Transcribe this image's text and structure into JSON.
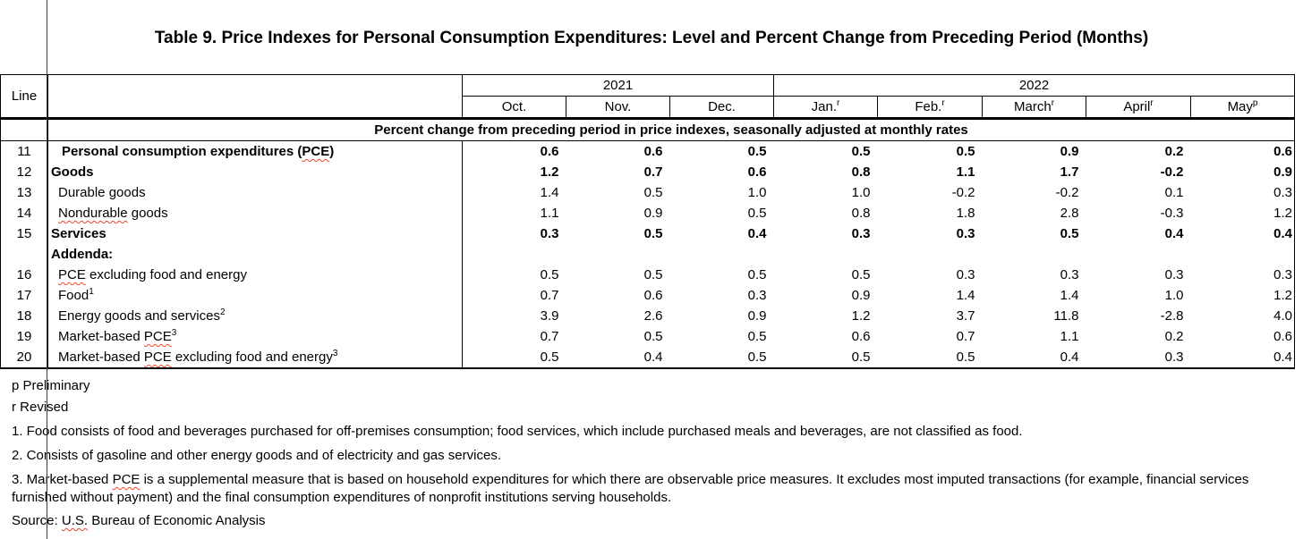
{
  "title": "Table 9. Price Indexes for Personal Consumption Expenditures: Level and Percent Change from Preceding Period (Months)",
  "colors": {
    "background": "#ffffff",
    "text": "#000000",
    "border": "#000000",
    "spellcheck_squiggle": "#f0442c"
  },
  "table": {
    "line_header": "Line",
    "year_groups": [
      {
        "label": "2021",
        "span": 3
      },
      {
        "label": "2022",
        "span": 5
      }
    ],
    "months": [
      {
        "label": "Oct.",
        "sup": ""
      },
      {
        "label": "Nov.",
        "sup": ""
      },
      {
        "label": "Dec.",
        "sup": ""
      },
      {
        "label": "Jan.",
        "sup": "r"
      },
      {
        "label": "Feb.",
        "sup": "r"
      },
      {
        "label": "March",
        "sup": "r"
      },
      {
        "label": "April",
        "sup": "r"
      },
      {
        "label": "May",
        "sup": "p"
      }
    ],
    "banner": "Percent change from preceding period in price indexes, seasonally adjusted at monthly rates",
    "rows": [
      {
        "line": "11",
        "label": "Personal consumption expenditures (PCE)",
        "sup": "",
        "indent": 2,
        "bold": true,
        "squiggle": [
          "PCE"
        ],
        "values": [
          "0.6",
          "0.6",
          "0.5",
          "0.5",
          "0.5",
          "0.9",
          "0.2",
          "0.6"
        ]
      },
      {
        "line": "12",
        "label": "Goods",
        "sup": "",
        "indent": 0,
        "bold": true,
        "squiggle": [],
        "values": [
          "1.2",
          "0.7",
          "0.6",
          "0.8",
          "1.1",
          "1.7",
          "-0.2",
          "0.9"
        ]
      },
      {
        "line": "13",
        "label": "Durable goods",
        "sup": "",
        "indent": 1,
        "bold": false,
        "squiggle": [],
        "values": [
          "1.4",
          "0.5",
          "1.0",
          "1.0",
          "-0.2",
          "-0.2",
          "0.1",
          "0.3"
        ]
      },
      {
        "line": "14",
        "label": "Nondurable goods",
        "sup": "",
        "indent": 1,
        "bold": false,
        "squiggle": [
          "Nondurable"
        ],
        "values": [
          "1.1",
          "0.9",
          "0.5",
          "0.8",
          "1.8",
          "2.8",
          "-0.3",
          "1.2"
        ]
      },
      {
        "line": "15",
        "label": "Services",
        "sup": "",
        "indent": 0,
        "bold": true,
        "squiggle": [],
        "values": [
          "0.3",
          "0.5",
          "0.4",
          "0.3",
          "0.3",
          "0.5",
          "0.4",
          "0.4"
        ]
      },
      {
        "line": "",
        "label": "Addenda:",
        "sup": "",
        "indent": 0,
        "bold": true,
        "squiggle": [],
        "values": [
          "",
          "",
          "",
          "",
          "",
          "",
          "",
          ""
        ]
      },
      {
        "line": "16",
        "label": "PCE excluding food and energy",
        "sup": "",
        "indent": 1,
        "bold": false,
        "squiggle": [
          "PCE"
        ],
        "values": [
          "0.5",
          "0.5",
          "0.5",
          "0.5",
          "0.3",
          "0.3",
          "0.3",
          "0.3"
        ]
      },
      {
        "line": "17",
        "label": "Food",
        "sup": "1",
        "indent": 1,
        "bold": false,
        "squiggle": [],
        "values": [
          "0.7",
          "0.6",
          "0.3",
          "0.9",
          "1.4",
          "1.4",
          "1.0",
          "1.2"
        ]
      },
      {
        "line": "18",
        "label": "Energy goods and services",
        "sup": "2",
        "indent": 1,
        "bold": false,
        "squiggle": [],
        "values": [
          "3.9",
          "2.6",
          "0.9",
          "1.2",
          "3.7",
          "11.8",
          "-2.8",
          "4.0"
        ]
      },
      {
        "line": "19",
        "label": "Market-based PCE",
        "sup": "3",
        "indent": 1,
        "bold": false,
        "squiggle": [
          "PCE"
        ],
        "values": [
          "0.7",
          "0.5",
          "0.5",
          "0.6",
          "0.7",
          "1.1",
          "0.2",
          "0.6"
        ]
      },
      {
        "line": "20",
        "label": "Market-based PCE excluding food and energy",
        "sup": "3",
        "indent": 1,
        "bold": false,
        "squiggle": [
          "PCE"
        ],
        "values": [
          "0.5",
          "0.4",
          "0.5",
          "0.5",
          "0.5",
          "0.4",
          "0.3",
          "0.4"
        ]
      }
    ]
  },
  "footnotes": {
    "flags": [
      {
        "text": "p Preliminary",
        "squiggle": []
      },
      {
        "text": "r Revised",
        "squiggle": []
      }
    ],
    "notes": [
      {
        "text": "1. Food consists of food and beverages purchased for off-premises consumption; food services, which include purchased meals and beverages, are not classified as food.",
        "squiggle": []
      },
      {
        "text": "2. Consists of gasoline and other energy goods and of electricity and gas services.",
        "squiggle": []
      },
      {
        "text": "3. Market-based PCE is a supplemental measure that is based on household expenditures for which there are observable price measures. It excludes most imputed transactions (for example, financial services furnished without payment) and the final consumption expenditures of nonprofit institutions serving households.",
        "squiggle": [
          "PCE"
        ]
      }
    ],
    "source": {
      "text": "Source: U.S. Bureau of Economic Analysis",
      "squiggle": [
        "U.S."
      ]
    }
  }
}
